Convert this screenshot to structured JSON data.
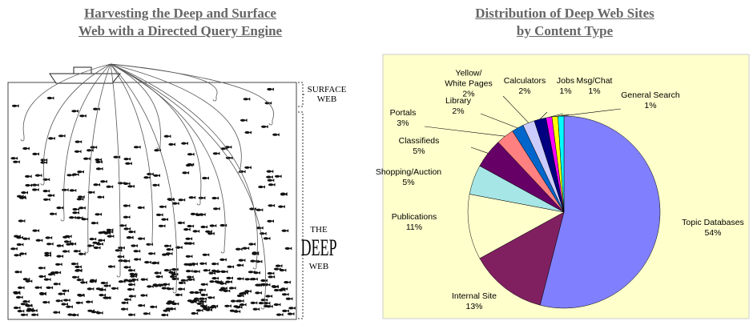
{
  "illustration": {
    "title_lines": [
      "Harvesting the Deep and Surface",
      "Web with a Directed Query Engine"
    ],
    "surface_label_lines": [
      "SURFACE",
      "WEB"
    ],
    "deep_label_lines": [
      "THE",
      "DEEP",
      "WEB"
    ]
  },
  "chart_data": {
    "type": "pie",
    "title_lines": [
      "Distribution of Deep Web Sites",
      "by Content Type"
    ],
    "categories": [
      "Topic Databases",
      "Internal Site",
      "Publications",
      "Shopping/Auction",
      "Classifieds",
      "Portals",
      "Library",
      "Yellow/ White Pages",
      "Calculators",
      "Jobs",
      "Msg/Chat",
      "General Search"
    ],
    "values": [
      54,
      13,
      11,
      5,
      5,
      3,
      2,
      2,
      2,
      1,
      1,
      1
    ],
    "value_labels": [
      "54%",
      "13%",
      "11%",
      "5%",
      "5%",
      "3%",
      "2%",
      "2%",
      "2%",
      "1%",
      "1%",
      "1%"
    ],
    "colors": [
      "#8080ff",
      "#802060",
      "#ffffcc",
      "#a6e6e6",
      "#660066",
      "#ff8080",
      "#0066cc",
      "#ccccff",
      "#000080",
      "#ff00ff",
      "#ffff00",
      "#00ffff"
    ]
  }
}
